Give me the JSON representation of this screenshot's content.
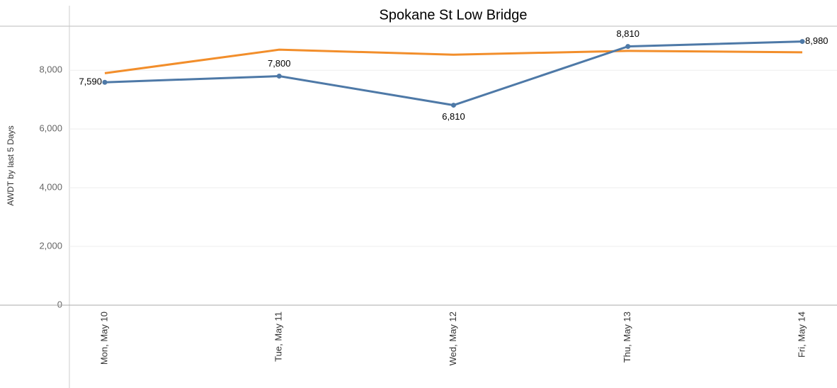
{
  "chart_data": {
    "type": "line",
    "title": "Spokane St Low Bridge",
    "y_label": "AWDT by last 5 Days",
    "categories": [
      "Mon, May 10",
      "Tue, May 11",
      "Wed, May 12",
      "Thu, May 13",
      "Fri, May 14"
    ],
    "series": [
      {
        "color": "#4e79a7",
        "values": [
          7590,
          7800,
          6810,
          8810,
          8980
        ],
        "value_labels": [
          "7,590",
          "7,800",
          "6,810",
          "8,810",
          "8,980"
        ],
        "markers": true
      },
      {
        "color": "#f28e2b",
        "values": [
          7900,
          8700,
          8530,
          8660,
          8610
        ],
        "markers": false
      }
    ],
    "ylim": [
      0,
      9500
    ],
    "yticks": [
      0,
      {
        "value": 2000,
        "label": "2,000"
      },
      {
        "value": 4000,
        "label": "4,000"
      },
      {
        "value": 6000,
        "label": "6,000"
      },
      {
        "value": 8000,
        "label": "8,000"
      }
    ],
    "grid": true
  }
}
